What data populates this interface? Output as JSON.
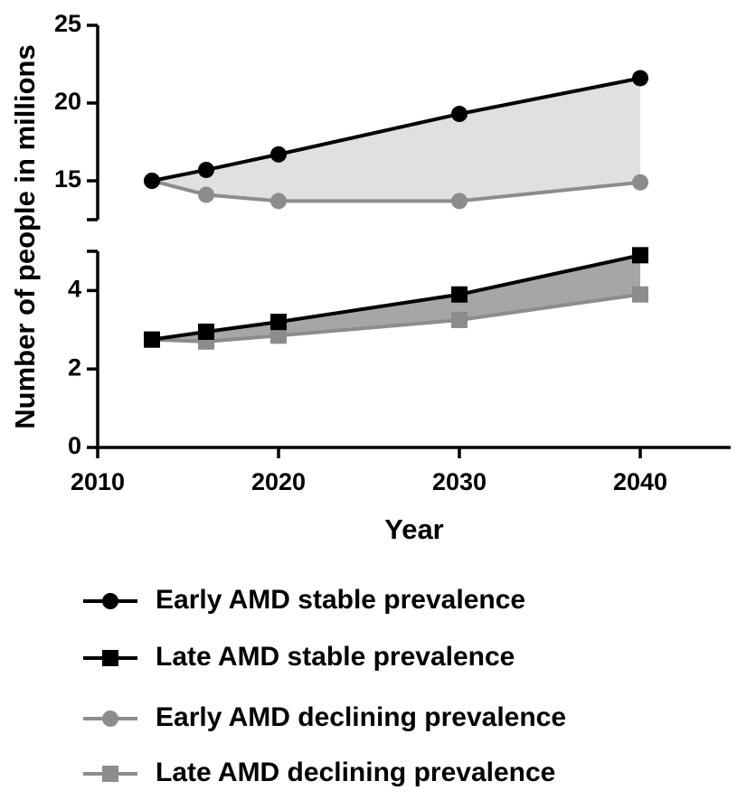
{
  "chart_data": {
    "type": "line",
    "y_label": "Number of people in millions",
    "x_label": "Year",
    "x": [
      2013,
      2016,
      2020,
      2030,
      2040
    ],
    "xlim": [
      2010,
      2045
    ],
    "xticks": [
      2010,
      2020,
      2030,
      2040
    ],
    "ylim": [
      0,
      5
    ],
    "yticks": [
      0,
      2,
      4
    ],
    "ylim_upper": [
      12.5,
      25
    ],
    "yticks_upper": [
      15,
      20,
      25
    ],
    "series": [
      {
        "name": "Early AMD stable prevalence",
        "color": "#000000",
        "marker": "circle",
        "panel": "upper",
        "fill_color": "#e0e0e0",
        "values": [
          15.0,
          15.7,
          16.7,
          19.3,
          21.6
        ]
      },
      {
        "name": "Late AMD stable prevalence",
        "color": "#000000",
        "marker": "square",
        "panel": "lower",
        "fill_color": "#a6a6a6",
        "values": [
          2.75,
          2.95,
          3.2,
          3.9,
          4.9
        ]
      },
      {
        "name": "Early AMD declining prevalence",
        "color": "#8c8c8c",
        "marker": "circle",
        "panel": "upper",
        "values": [
          15.0,
          14.1,
          13.7,
          13.7,
          14.9
        ]
      },
      {
        "name": "Late AMD declining prevalence",
        "color": "#8c8c8c",
        "marker": "square",
        "panel": "lower",
        "values": [
          2.75,
          2.7,
          2.85,
          3.25,
          3.9
        ]
      }
    ]
  }
}
